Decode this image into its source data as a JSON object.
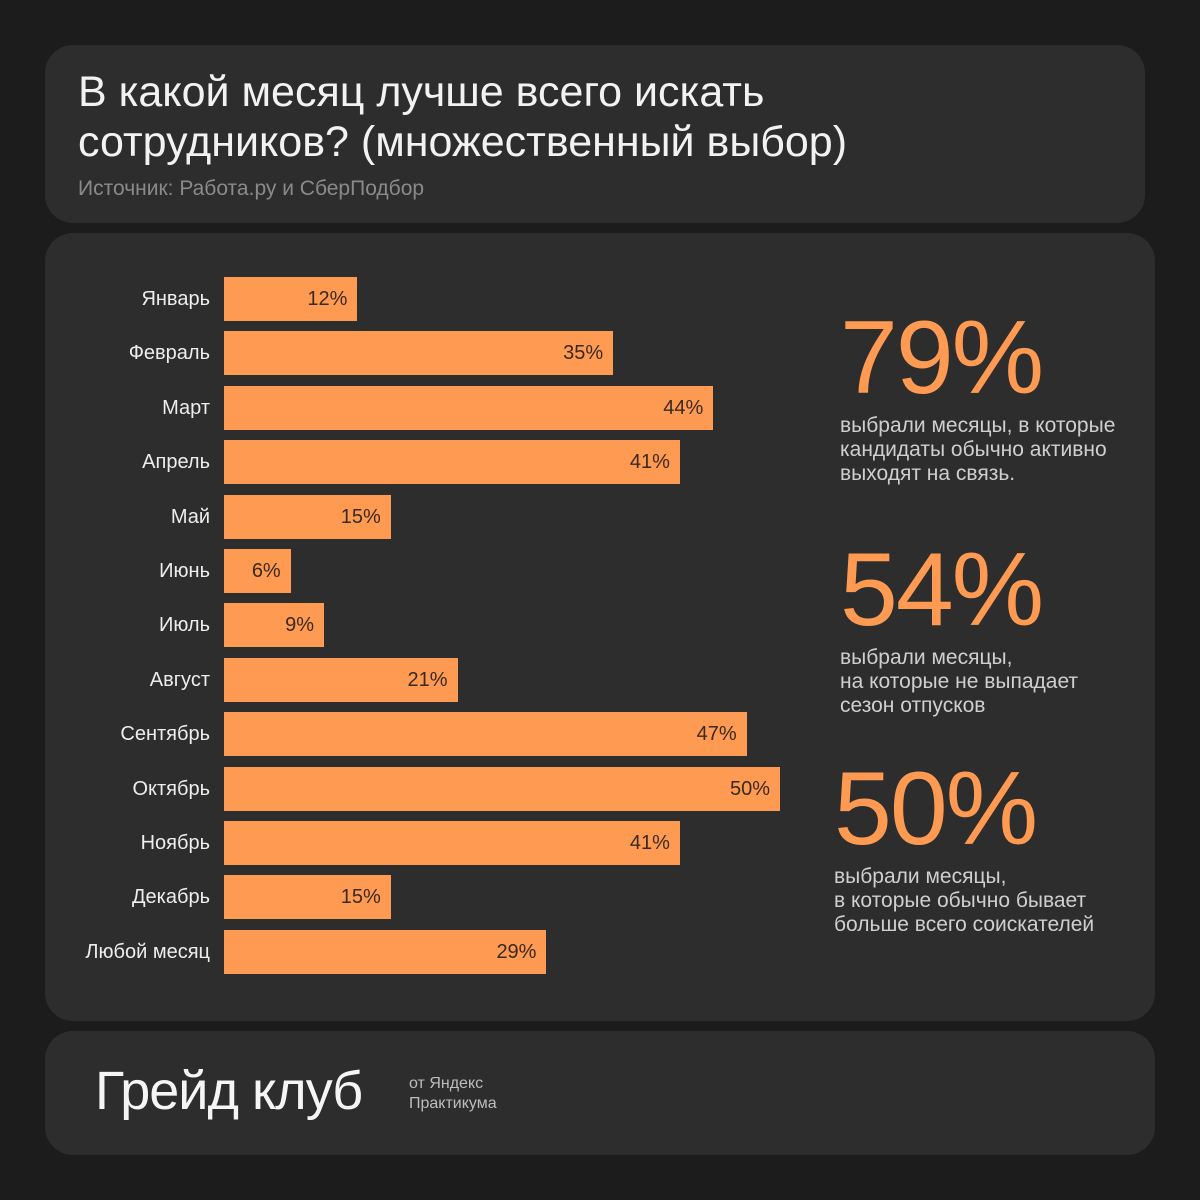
{
  "header": {
    "title_lines": [
      "В какой месяц лучше всего искать",
      "сотрудников? (множественный выбор)"
    ],
    "source": "Источник: Работа.ру и СберПодбор"
  },
  "chart_data": {
    "type": "bar",
    "orientation": "horizontal",
    "categories": [
      "Январь",
      "Февраль",
      "Март",
      "Апрель",
      "Май",
      "Июнь",
      "Июль",
      "Август",
      "Сентябрь",
      "Октябрь",
      "Ноябрь",
      "Декабрь",
      "Любой месяц"
    ],
    "values": [
      12,
      35,
      44,
      41,
      15,
      6,
      9,
      21,
      47,
      50,
      41,
      15,
      29
    ],
    "value_labels": [
      "12%",
      "35%",
      "44%",
      "41%",
      "15%",
      "6%",
      "9%",
      "21%",
      "47%",
      "50%",
      "41%",
      "15%",
      "29%"
    ],
    "unit": "%",
    "xlim": [
      0,
      50
    ],
    "bar_color": "#ff9a52",
    "grid": false
  },
  "stats": [
    {
      "value": "79%",
      "desc_lines": [
        "выбрали месяцы, в которые",
        "кандидаты обычно активно",
        "выходят на связь."
      ]
    },
    {
      "value": "54%",
      "desc_lines": [
        "выбрали месяцы,",
        "на которые не выпадает",
        "сезон отпусков"
      ]
    },
    {
      "value": "50%",
      "desc_lines": [
        "выбрали месяцы,",
        "в которые обычно бывает",
        "больше всего соискателей"
      ]
    }
  ],
  "footer": {
    "brand": "Грейд клуб",
    "brand_sub_lines": [
      "от Яндекс",
      "Практикума"
    ]
  },
  "colors": {
    "background": "#1c1c1c",
    "panel": "#2d2d2d",
    "accent": "#ff9a52"
  }
}
